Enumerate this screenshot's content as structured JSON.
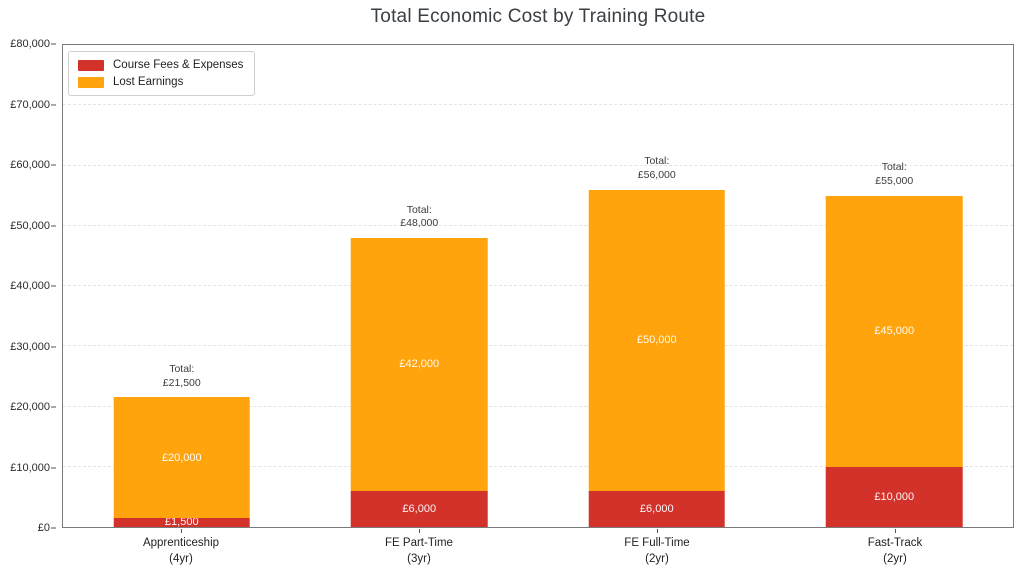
{
  "title": "Total Economic Cost by Training Route",
  "colors": {
    "fees": "#d3322b",
    "earnings": "#ffa40d",
    "grid": "#e4e4e4",
    "spine": "#7a7a7a",
    "title_text": "#3a3f44",
    "tick_text": "#2b2b2b",
    "bar_label_text": "#ffffff",
    "background": "#ffffff"
  },
  "chart_data": {
    "type": "bar",
    "stacked": true,
    "title": "Total Economic Cost by Training Route",
    "xlabel": "",
    "ylabel": "",
    "ylim": [
      0,
      80000
    ],
    "grid": true,
    "grid_style": "dashed",
    "legend_position": "upper left",
    "categories": [
      {
        "line1": "Apprenticeship",
        "line2": "(4yr)"
      },
      {
        "line1": "FE Part-Time",
        "line2": "(3yr)"
      },
      {
        "line1": "FE Full-Time",
        "line2": "(2yr)"
      },
      {
        "line1": "Fast-Track",
        "line2": "(2yr)"
      }
    ],
    "series": [
      {
        "name": "Course Fees & Expenses",
        "color": "#d3322b",
        "values": [
          1500,
          6000,
          6000,
          10000
        ],
        "labels": [
          "£1,500",
          "£6,000",
          "£6,000",
          "£10,000"
        ]
      },
      {
        "name": "Lost Earnings",
        "color": "#ffa40d",
        "values": [
          20000,
          42000,
          50000,
          45000
        ],
        "labels": [
          "£20,000",
          "£42,000",
          "£50,000",
          "£45,000"
        ]
      }
    ],
    "totals": {
      "prefix": "Total:",
      "values": [
        21500,
        48000,
        56000,
        55000
      ],
      "labels": [
        "£21,500",
        "£48,000",
        "£56,000",
        "£55,000"
      ]
    },
    "yticks": {
      "values": [
        0,
        10000,
        20000,
        30000,
        40000,
        50000,
        60000,
        70000,
        80000
      ],
      "labels": [
        "£0",
        "£10,000",
        "£20,000",
        "£30,000",
        "£40,000",
        "£50,000",
        "£60,000",
        "£70,000",
        "£80,000"
      ]
    }
  }
}
